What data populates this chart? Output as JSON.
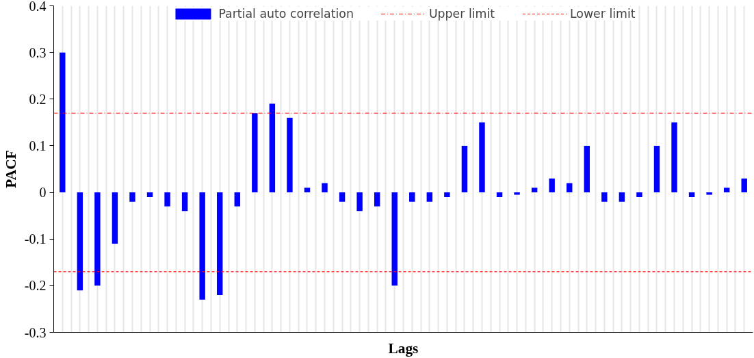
{
  "chart_data": {
    "type": "bar",
    "xlabel": "Lags",
    "ylabel": "PACF",
    "categories": [
      null,
      null,
      null,
      null,
      null,
      null,
      null,
      null,
      null,
      null,
      null,
      null,
      null,
      null,
      null,
      null,
      null,
      null,
      null,
      null,
      null,
      null,
      null,
      null,
      null,
      null,
      null,
      null,
      null,
      null,
      null,
      null,
      null,
      null,
      null,
      null,
      null,
      null,
      null,
      null
    ],
    "series": [
      {
        "name": "Partial auto correlation",
        "color": "#0000ff",
        "values": [
          0.3,
          -0.21,
          -0.2,
          -0.11,
          -0.02,
          -0.01,
          -0.03,
          -0.04,
          -0.23,
          -0.22,
          -0.03,
          0.17,
          0.19,
          0.16,
          0.01,
          0.02,
          -0.02,
          -0.04,
          -0.03,
          -0.2,
          -0.02,
          -0.02,
          -0.01,
          0.1,
          0.15,
          -0.01,
          -0.005,
          0.01,
          0.03,
          0.02,
          0.1,
          -0.02,
          -0.02,
          -0.01,
          0.1,
          0.15,
          -0.01,
          -0.005,
          0.01,
          0.03
        ]
      }
    ],
    "ref_lines": [
      {
        "axis": "y",
        "value": 0.17,
        "label": "Upper limit",
        "color": "#ff0000",
        "line_style": "dashdot"
      },
      {
        "axis": "y",
        "value": -0.17,
        "label": "Lower limit",
        "color": "#ff0000",
        "line_style": "dashed"
      }
    ],
    "ylim": [
      -0.3,
      0.4
    ],
    "yticks": [
      -0.3,
      -0.2,
      -0.1,
      0,
      0.1,
      0.2,
      0.3,
      0.4
    ],
    "grid": "x",
    "legend": "top"
  }
}
